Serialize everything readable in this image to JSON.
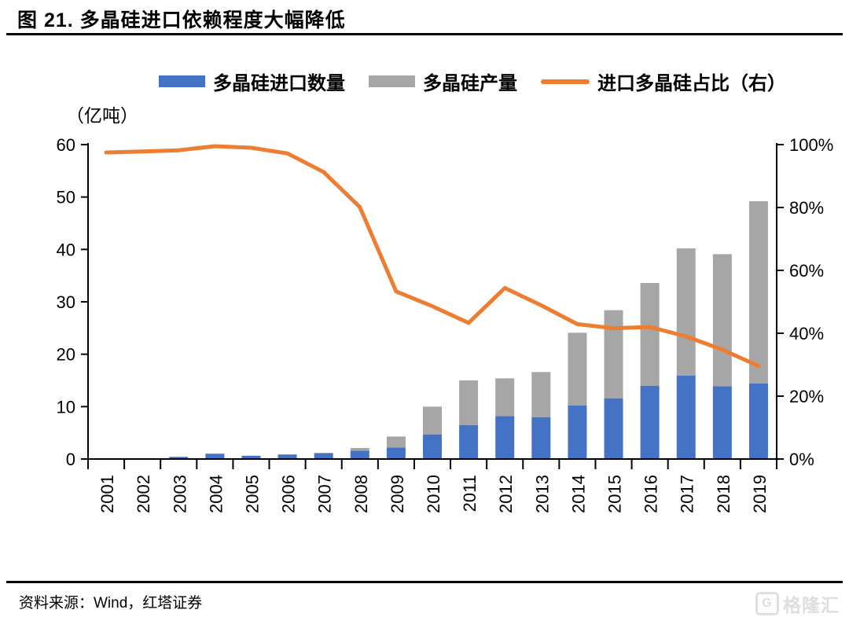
{
  "page": {
    "title": "图 21. 多晶硅进口依赖程度大幅降低",
    "unit_label": "（亿吨）",
    "source_note": "资料来源：Wind，红塔证券",
    "watermark": "格隆汇",
    "watermark_logo": "G"
  },
  "legend": [
    {
      "label": "多晶硅进口数量",
      "type": "bar",
      "color": "#4472C4"
    },
    {
      "label": "多晶硅产量",
      "type": "bar",
      "color": "#A6A6A6"
    },
    {
      "label": "进口多晶硅占比（右）",
      "type": "line",
      "color": "#ED7D31"
    }
  ],
  "chart_data": {
    "type": "bar",
    "subtype": "stacked-bar-with-line",
    "title": "多晶硅进口依赖程度大幅降低",
    "categories": [
      "2001",
      "2002",
      "2003",
      "2004",
      "2005",
      "2006",
      "2007",
      "2008",
      "2009",
      "2010",
      "2011",
      "2012",
      "2013",
      "2014",
      "2015",
      "2016",
      "2017",
      "2018",
      "2019"
    ],
    "series": [
      {
        "name": "多晶硅进口数量",
        "type": "bar",
        "stack": "total",
        "axis": "left",
        "color": "#4472C4",
        "values": [
          0.05,
          0.05,
          0.4,
          1.0,
          0.6,
          0.85,
          1.1,
          1.6,
          2.2,
          4.7,
          6.5,
          8.2,
          8.0,
          10.2,
          11.6,
          14.0,
          15.9,
          13.9,
          14.4
        ]
      },
      {
        "name": "多晶硅产量",
        "type": "bar",
        "stack": "total",
        "axis": "left",
        "color": "#A6A6A6",
        "values": [
          0.1,
          0.1,
          0.05,
          0.05,
          0.05,
          0.05,
          0.1,
          0.5,
          2.1,
          5.3,
          8.5,
          7.2,
          8.6,
          13.9,
          16.8,
          19.6,
          24.3,
          25.2,
          34.8
        ]
      },
      {
        "name": "进口多晶硅占比（右）",
        "type": "line",
        "axis": "right",
        "color": "#ED7D31",
        "values": [
          97.5,
          97.8,
          98.2,
          99.5,
          99.0,
          97.2,
          91.3,
          80.1,
          53.3,
          48.6,
          43.3,
          54.4,
          48.9,
          42.9,
          41.6,
          42.0,
          39.0,
          34.8,
          29.6
        ]
      }
    ],
    "left_axis": {
      "label": "（亿吨）",
      "min": 0,
      "max": 60,
      "tick_step": 10,
      "tick_labels": [
        "0",
        "10",
        "20",
        "30",
        "40",
        "50",
        "60"
      ]
    },
    "right_axis": {
      "min": 0,
      "max": 100,
      "tick_step": 20,
      "tick_labels": [
        "0%",
        "20%",
        "40%",
        "60%",
        "80%",
        "100%"
      ]
    },
    "grid": false,
    "legend_position": "top",
    "x_label_rotation": -90
  }
}
